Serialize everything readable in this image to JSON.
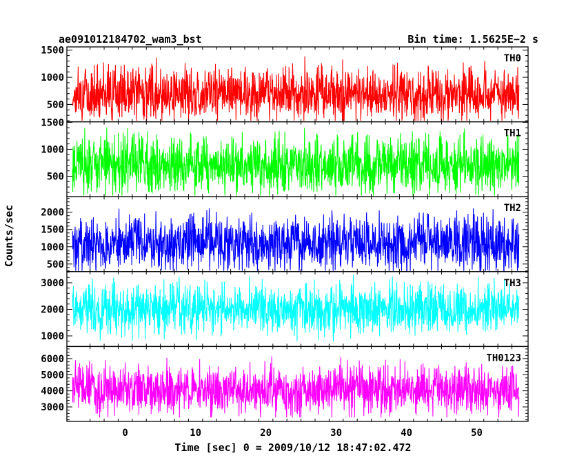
{
  "header": {
    "title": "ae091012184702_wam3_bst",
    "bin_time": "Bin time: 1.5625E−2 s"
  },
  "chart_data": {
    "type": "line",
    "title": "ae091012184702_wam3_bst",
    "xlabel": "Time [sec] 0 = 2009/10/12 18:47:02.472",
    "ylabel": "Counts/sec",
    "xlim": [
      -8.3,
      57.3
    ],
    "x_range": [
      -7.5,
      56.0
    ],
    "xticks": [
      0,
      10,
      20,
      30,
      40,
      50
    ],
    "bin_time_s": 0.015625,
    "colors": {
      "TH0": "#ff0000",
      "TH1": "#00ff00",
      "TH2": "#0000ff",
      "TH3": "#00ffff",
      "TH0123": "#ff00ff"
    },
    "panels": [
      {
        "name": "TH0",
        "color": "#ff0000",
        "ylim": [
          180,
          1560
        ],
        "yticks": [
          500,
          1000,
          1500
        ],
        "mean": 700,
        "spread": 300,
        "min": 200,
        "max": 1540
      },
      {
        "name": "TH1",
        "color": "#00ff00",
        "ylim": [
          120,
          1510
        ],
        "yticks": [
          500,
          1000,
          1500
        ],
        "mean": 700,
        "spread": 330,
        "min": 140,
        "max": 1480
      },
      {
        "name": "TH2",
        "color": "#0000ff",
        "ylim": [
          280,
          2450
        ],
        "yticks": [
          500,
          1000,
          1500,
          2000
        ],
        "mean": 1100,
        "spread": 470,
        "min": 300,
        "max": 2380
      },
      {
        "name": "TH3",
        "color": "#00ffff",
        "ylim": [
          600,
          3420
        ],
        "yticks": [
          1000,
          2000,
          3000
        ],
        "mean": 2000,
        "spread": 580,
        "min": 800,
        "max": 3350
      },
      {
        "name": "TH0123",
        "color": "#ff00ff",
        "ylim": [
          2100,
          6750
        ],
        "yticks": [
          3000,
          4000,
          5000,
          6000
        ],
        "mean": 4000,
        "spread": 950,
        "min": 2350,
        "max": 6650
      }
    ]
  }
}
